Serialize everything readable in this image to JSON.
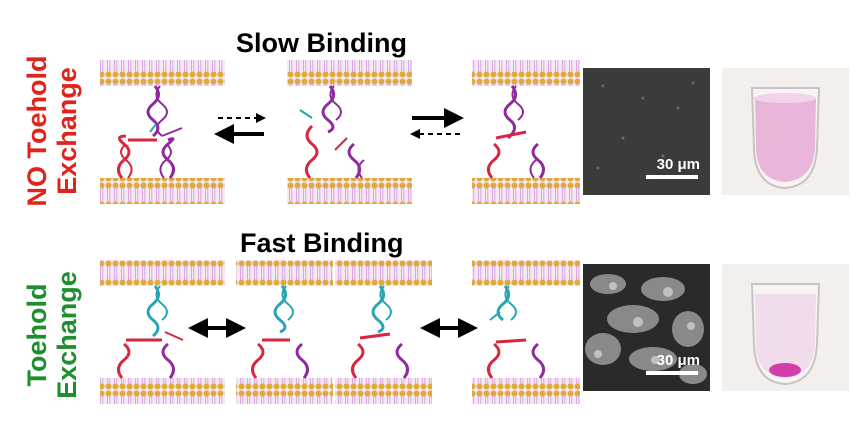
{
  "rows": {
    "no_toehold": {
      "side_line1": "NO Toehold",
      "side_line2": "Exchange",
      "side_color": "#e0241b",
      "title": "Slow Binding",
      "scale_label": "30 μm"
    },
    "toehold": {
      "side_line1": "Toehold",
      "side_line2": "Exchange",
      "side_color": "#1e8f2e",
      "title": "Fast Binding",
      "scale_label": "30 μm"
    }
  },
  "colors": {
    "membrane_head": "#e0a93a",
    "membrane_tail": "#d9a6e0",
    "strand_red": "#d7263d",
    "strand_purple": "#8e2a9c",
    "strand_cyan": "#26a6b5",
    "solution_pink": "#e9b6da",
    "pellet_magenta": "#d23ea8"
  },
  "icons": [
    "double-helix-icon",
    "lipid-bilayer-icon",
    "arrow-icon",
    "test-tube-icon"
  ]
}
